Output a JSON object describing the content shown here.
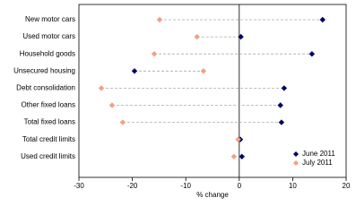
{
  "chart_data": {
    "type": "dot",
    "categories": [
      "New motor cars",
      "Used motor cars",
      "Household goods",
      "Unsecured housing",
      "Debt consolidation",
      "Other fixed loans",
      "Total fixed loans",
      "Total credit limits",
      "Used credit limits"
    ],
    "series": [
      {
        "name": "June 2011",
        "color": "#000066",
        "values": [
          15.6,
          0.3,
          13.6,
          -19.6,
          8.4,
          7.7,
          7.9,
          0.2,
          0.5
        ]
      },
      {
        "name": "July 2011",
        "color": "#f4a07e",
        "values": [
          -14.9,
          -7.9,
          -15.9,
          -6.7,
          -25.8,
          -23.8,
          -21.8,
          -0.2,
          -1.0
        ]
      }
    ],
    "xlabel": "% change",
    "xlim": [
      -30,
      20
    ],
    "xticks": [
      -30,
      -20,
      -10,
      0,
      10,
      20
    ],
    "legend": "bottom-right"
  }
}
